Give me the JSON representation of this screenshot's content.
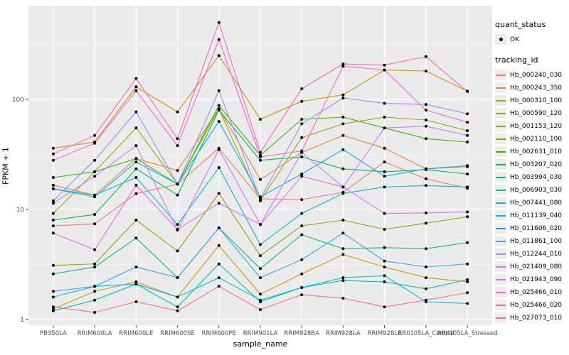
{
  "figure": {
    "background": "#FFFFFF",
    "panel_background": "#EBEBEB",
    "gridline_color": "#FFFFFF",
    "tick_color": "#333333",
    "tick_label_color": "#4D4D4D",
    "point_color": "#000000"
  },
  "legend": {
    "quant_status_title": "quant_status",
    "quant_status_items": [
      {
        "label": "OK",
        "shape": "point",
        "color": "#000000"
      }
    ],
    "tracking_id_title": "tracking_id"
  },
  "chart_data": {
    "type": "line",
    "title": "",
    "xlabel": "sample_name",
    "ylabel": "FPKM + 1",
    "y_scale": "log10",
    "grid": true,
    "legend_position": "right",
    "y_tick_labels": [
      "1",
      "10",
      "100"
    ],
    "y_ticks": [
      1,
      10,
      100
    ],
    "y_minor_ticks": [
      3.1623,
      31.623,
      316.23
    ],
    "ylim": [
      0.93,
      710
    ],
    "categories": [
      "PB350LA",
      "RRIM600LA",
      "RRIM600LE",
      "RRIM600SE",
      "RRIM600PE",
      "RRIM901LA",
      "RRIM928BA",
      "RRIM928LA",
      "RRIM928LE",
      "RRII105LA_Control",
      "RRII105LA_Stressed"
    ],
    "series": [
      {
        "name": "Hb_000240_030",
        "color": "#F8766D",
        "values": [
          7.1,
          7.4,
          13.9,
          17,
          36,
          12.5,
          12.3,
          14.3,
          27,
          19,
          15.6
        ]
      },
      {
        "name": "Hb_000243_350",
        "color": "#EA8331",
        "values": [
          16.6,
          13.5,
          29,
          22.6,
          82,
          18.7,
          33,
          47,
          36,
          23.4,
          24.5
        ]
      },
      {
        "name": "Hb_000310_100",
        "color": "#D89000",
        "values": [
          1.25,
          1.8,
          2.2,
          1.6,
          4.7,
          1.7,
          2.6,
          3.9,
          3.0,
          2.4,
          2.2
        ]
      },
      {
        "name": "Hb_000590_120",
        "color": "#C09B00",
        "values": [
          36,
          41,
          130,
          77,
          250,
          66,
          96,
          110,
          185,
          181,
          119
        ]
      },
      {
        "name": "Hb_001153_120",
        "color": "#A3A500",
        "values": [
          9.2,
          22,
          55,
          17,
          82,
          12,
          45,
          60,
          69,
          65,
          52
        ]
      },
      {
        "name": "Hb_002110_100",
        "color": "#7CAE00",
        "values": [
          3.1,
          3.2,
          8.0,
          4.2,
          14,
          3.8,
          7.1,
          8.0,
          6.6,
          7.5,
          8.6
        ]
      },
      {
        "name": "Hb_002631_010",
        "color": "#39B600",
        "values": [
          19.5,
          22,
          29,
          17,
          88,
          31,
          66,
          69,
          55,
          44,
          41
        ]
      },
      {
        "name": "Hb_003207_020",
        "color": "#00BB4E",
        "values": [
          8.0,
          9.0,
          23.4,
          13.5,
          80,
          28,
          30,
          23.4,
          22,
          23,
          21
        ]
      },
      {
        "name": "Hb_003994_030",
        "color": "#00BF7D",
        "values": [
          2.6,
          3.0,
          5.5,
          2.4,
          6.8,
          2.9,
          5.9,
          4.4,
          4.5,
          4.4,
          5.0
        ]
      },
      {
        "name": "Hb_006903_030",
        "color": "#00C1A3",
        "values": [
          1.2,
          1.5,
          2.1,
          1.3,
          3.2,
          1.45,
          1.95,
          2.26,
          2.2,
          1.9,
          2.3
        ]
      },
      {
        "name": "Hb_007441_080",
        "color": "#00BFC4",
        "values": [
          15.4,
          13.5,
          19.5,
          7.3,
          24,
          4.8,
          9.2,
          14.0,
          16.0,
          16.5,
          16.0
        ]
      },
      {
        "name": "Hb_011139_040",
        "color": "#00BAE0",
        "values": [
          1.6,
          2.0,
          2.1,
          1.6,
          2.4,
          1.5,
          1.95,
          2.4,
          2.5,
          1.45,
          1.4
        ]
      },
      {
        "name": "Hb_011606_020",
        "color": "#00B0F6",
        "values": [
          15.4,
          13.0,
          27,
          17,
          63,
          13,
          21,
          35,
          20,
          23.4,
          25
        ]
      },
      {
        "name": "Hb_011861_100",
        "color": "#35A2FF",
        "values": [
          1.8,
          2.0,
          3.0,
          2.4,
          6.8,
          2.4,
          3.5,
          6.1,
          3.4,
          3.0,
          3.2
        ]
      },
      {
        "name": "Hb_012244_010",
        "color": "#9590FF",
        "values": [
          12,
          28,
          77,
          17,
          120,
          12.5,
          60,
          103,
          92,
          90,
          74
        ]
      },
      {
        "name": "Hb_021409_080",
        "color": "#C77CFF",
        "values": [
          11.4,
          20,
          38,
          6.5,
          35,
          7.3,
          33,
          16,
          55,
          57,
          47
        ]
      },
      {
        "name": "Hb_021943_090",
        "color": "#E76BF3",
        "values": [
          6.1,
          4.3,
          16.6,
          6.6,
          11.4,
          7.3,
          20,
          16,
          9.2,
          9.3,
          9.5
        ]
      },
      {
        "name": "Hb_025466_010",
        "color": "#FA62DB",
        "values": [
          28,
          40,
          120,
          38,
          350,
          30,
          34,
          200,
          185,
          80,
          62
        ]
      },
      {
        "name": "Hb_025466_020",
        "color": "#FF62BC",
        "values": [
          32,
          47,
          155,
          44,
          500,
          33,
          125,
          210,
          205,
          245,
          118
        ]
      },
      {
        "name": "Hb_027073_010",
        "color": "#FF6A98",
        "values": [
          1.3,
          1.16,
          1.45,
          1.2,
          2.0,
          1.23,
          1.68,
          1.56,
          1.3,
          1.5,
          1.75
        ]
      }
    ]
  }
}
